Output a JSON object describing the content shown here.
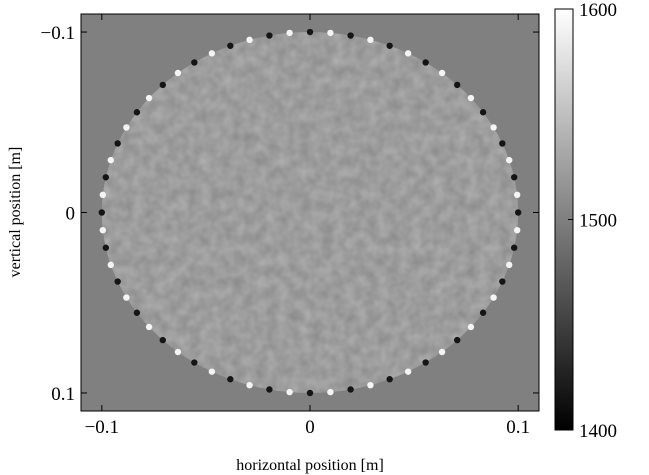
{
  "chart_data": {
    "type": "heatmap",
    "title": "",
    "xlabel": "horizontal position [m]",
    "ylabel": "vertical position [m]",
    "xlim": [
      -0.11,
      0.11
    ],
    "ylim": [
      -0.11,
      0.11
    ],
    "y_reversed": true,
    "grid": false,
    "x_ticks": [
      {
        "value": -0.1,
        "label": "−0.1"
      },
      {
        "value": 0,
        "label": "0"
      },
      {
        "value": 0.1,
        "label": "0.1"
      }
    ],
    "y_ticks": [
      {
        "value": -0.1,
        "label": "−0.1"
      },
      {
        "value": 0,
        "label": "0"
      },
      {
        "value": 0.1,
        "label": "0.1"
      }
    ],
    "background_value": 1500,
    "disk_radius": 0.1,
    "colorbar": {
      "min": 1400,
      "max": 1600,
      "colormap": "gray",
      "ticks": [
        {
          "value": 1600,
          "label": "1600"
        },
        {
          "value": 1500,
          "label": "1500"
        },
        {
          "value": 1400,
          "label": "1400"
        }
      ]
    }
  },
  "colors": {
    "background": "#808080",
    "axis": "#000000",
    "page": "#ffffff"
  }
}
